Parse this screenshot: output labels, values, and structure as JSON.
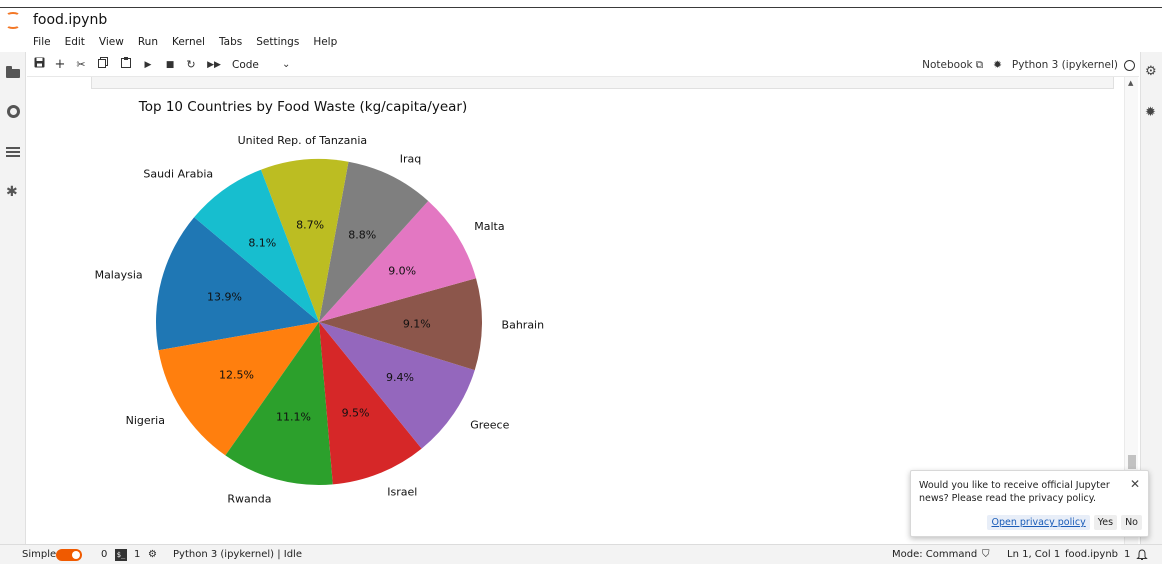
{
  "window": {
    "filename": "food.ipynb"
  },
  "menu": [
    "File",
    "Edit",
    "View",
    "Run",
    "Kernel",
    "Tabs",
    "Settings",
    "Help"
  ],
  "toolbar": {
    "cell_type": "Code",
    "notebook_label": "Notebook",
    "kernel_name": "Python 3 (ipykernel)"
  },
  "chart_data": {
    "type": "pie",
    "title": "Top 10 Countries by Food Waste (kg/capita/year)",
    "categories": [
      "Malaysia",
      "Nigeria",
      "Rwanda",
      "Israel",
      "Greece",
      "Bahrain",
      "Malta",
      "Iraq",
      "United Rep. of Tanzania",
      "Saudi Arabia"
    ],
    "values": [
      13.9,
      12.5,
      11.1,
      9.5,
      9.4,
      9.1,
      9.0,
      8.8,
      8.7,
      8.1
    ],
    "labels_pct": [
      "13.9%",
      "12.5%",
      "11.1%",
      "9.5%",
      "9.4%",
      "9.1%",
      "9.0%",
      "8.8%",
      "8.7%",
      "8.1%"
    ],
    "colors": [
      "#1f77b4",
      "#ff7f0e",
      "#2ca02c",
      "#d62728",
      "#9467bd",
      "#8c564b",
      "#e377c2",
      "#7f7f7f",
      "#bcbd22",
      "#17becf"
    ],
    "start_angle_deg": 140,
    "direction": "counterclockwise"
  },
  "notification": {
    "message": "Would you like to receive official Jupyter news? Please read the privacy policy.",
    "privacy_link": "Open privacy policy",
    "yes": "Yes",
    "no": "No"
  },
  "status": {
    "mode_label": "Simple",
    "terminals": "0",
    "kernels": "1",
    "kernel_status": "Python 3 (ipykernel) | Idle",
    "mode": "Mode: Command",
    "cursor": "Ln 1, Col 1",
    "file": "food.ipynb",
    "notifications": "1"
  }
}
